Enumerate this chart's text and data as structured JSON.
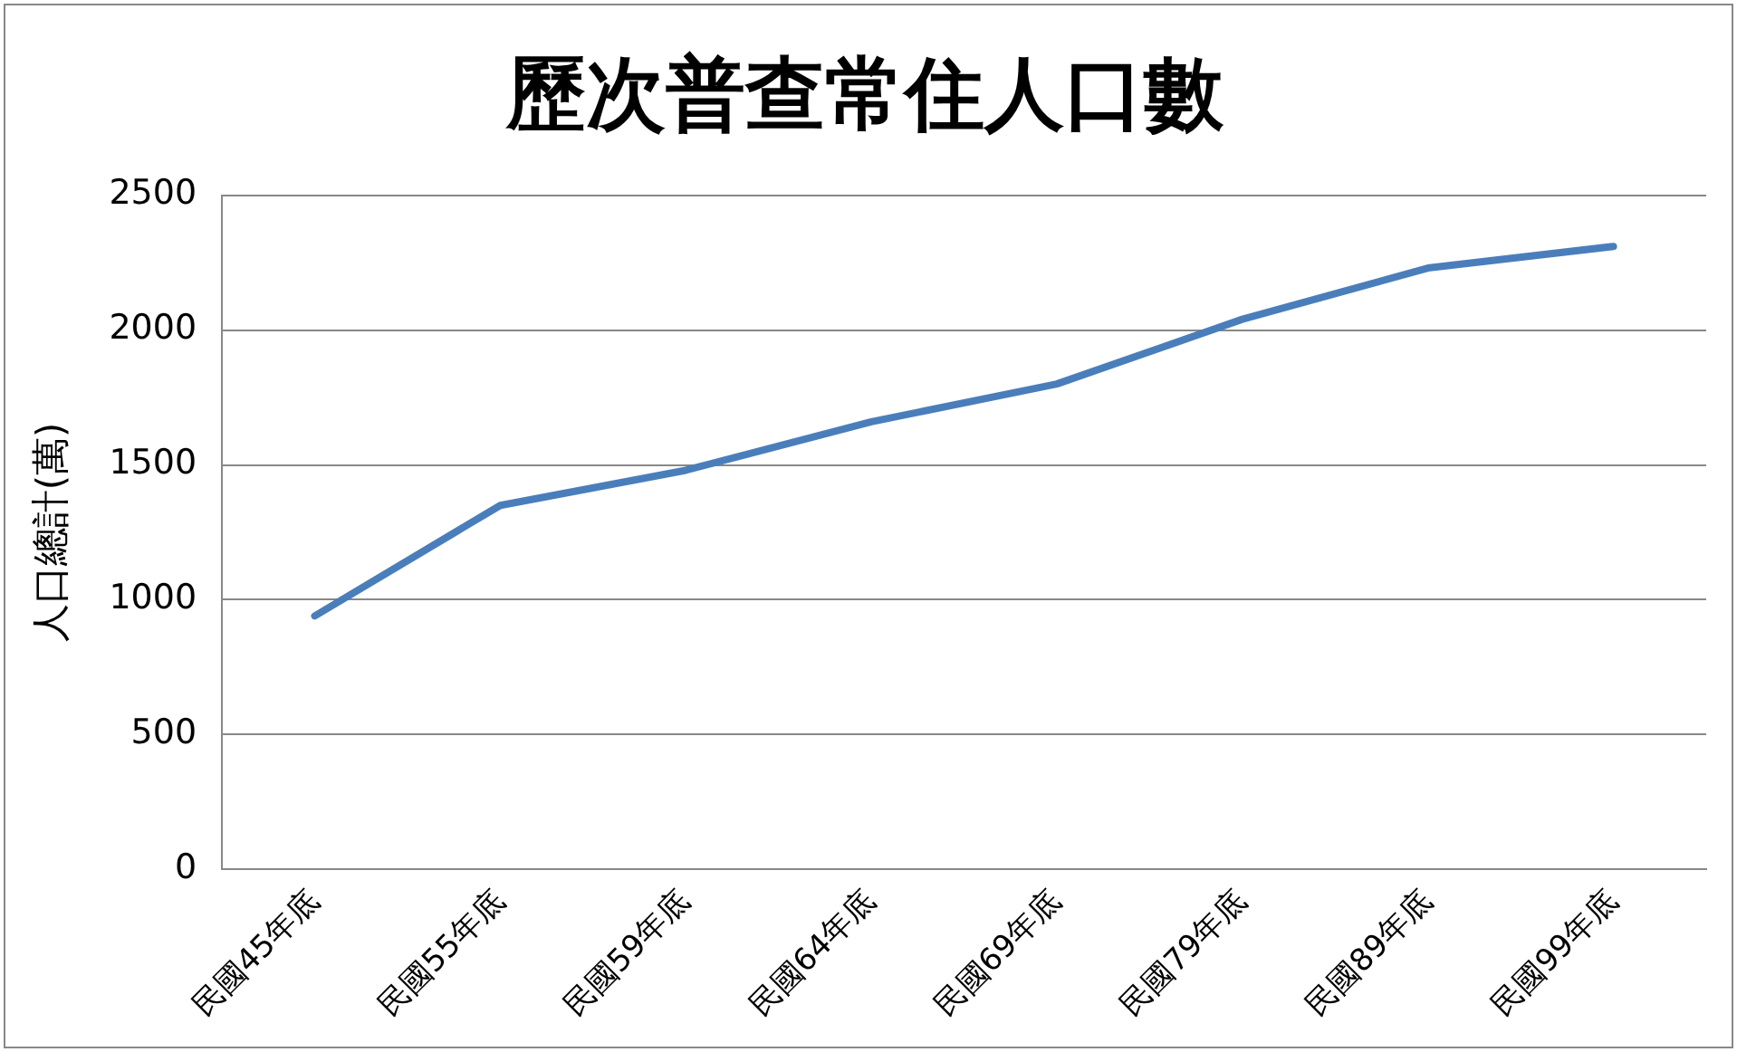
{
  "chart_data": {
    "type": "line",
    "title": "歷次普查常住人口數",
    "ylabel": "人口總計(萬)",
    "categories": [
      "民國45年底",
      "民國55年底",
      "民國59年底",
      "民國64年底",
      "民國69年底",
      "民國79年底",
      "民國89年底",
      "民國99年底"
    ],
    "series": [
      {
        "color": "#4a7ebb",
        "values": [
          940,
          1350,
          1480,
          1660,
          1800,
          2040,
          2230,
          2310
        ]
      }
    ],
    "ylim": [
      0,
      2500
    ],
    "yticks": [
      0,
      500,
      1000,
      1500,
      2000,
      2500
    ],
    "grid": "y",
    "legend": false,
    "marker": "none",
    "line_style": "solid"
  }
}
